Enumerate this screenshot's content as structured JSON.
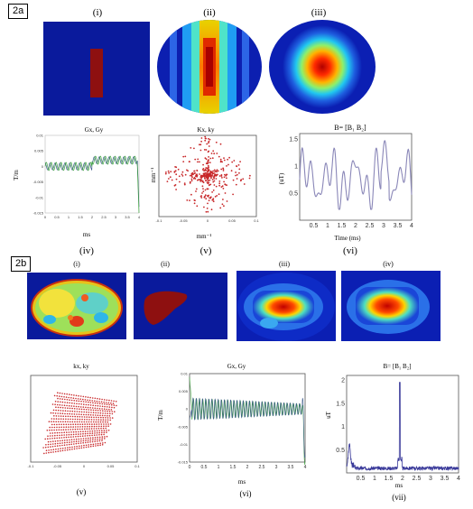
{
  "panel_a": {
    "label": "2a",
    "images": [
      "(i)",
      "(ii)",
      "(iii)"
    ],
    "plots": [
      {
        "roman": "(iv)",
        "title": "Gx, Gy",
        "xlabel": "ms",
        "ylabel": "T/m",
        "xticks": [
          "0",
          "0.5",
          "1",
          "1.5",
          "2",
          "2.5",
          "3",
          "3.5",
          "4"
        ],
        "yticks": [
          "0.01",
          "0.005",
          "0",
          "-0.005",
          "-0.01",
          "-0.015"
        ]
      },
      {
        "roman": "(v)",
        "title": "Kx, ky",
        "xlabel": "mm⁻¹",
        "ylabel": "mm⁻¹",
        "xticks": [
          "-0.1",
          "-0.05",
          "0",
          "0.05",
          "0.1"
        ]
      },
      {
        "roman": "(vi)",
        "title": "B= [B₁ B₂]",
        "xlabel": "Time (ms)",
        "ylabel": "(uT)",
        "xticks": [
          "0.5",
          "1",
          "1.5",
          "2",
          "2.5",
          "3",
          "3.5",
          "4"
        ],
        "yticks": [
          "1.5",
          "1",
          "0.5"
        ]
      }
    ]
  },
  "panel_b": {
    "label": "2b",
    "images": [
      "(i)",
      "(ii)",
      "(iii)",
      "(iv)"
    ],
    "plots": [
      {
        "roman": "(v)",
        "title": "kx, ky",
        "xticks": [
          "-0.1",
          "-0.05",
          "0",
          "0.05",
          "0.1"
        ]
      },
      {
        "roman": "(vi)",
        "title": "Gx, Gy",
        "xlabel": "ms",
        "ylabel": "T/m",
        "xticks": [
          "0",
          "0.5",
          "1",
          "1.5",
          "2",
          "2.5",
          "3",
          "3.5",
          "4"
        ],
        "yticks": [
          "0.01",
          "0.005",
          "0",
          "-0.005",
          "-0.01",
          "-0.015"
        ]
      },
      {
        "roman": "(vii)",
        "title": "B= [B₁ B₂]",
        "xlabel": "ms",
        "ylabel": "uT",
        "xticks": [
          "0.5",
          "1",
          "1.5",
          "2",
          "2.5",
          "3",
          "3.5",
          "4"
        ],
        "yticks": [
          "2",
          "1.5",
          "1",
          "0.5"
        ]
      }
    ]
  },
  "colors": {
    "map_bg": "#0a1a9c",
    "trace_green": "#3fa53f",
    "trace_blue": "#3d5a8a",
    "kspace_red": "#c8282a",
    "b_trace": "#8a87b8"
  },
  "chart_data": [
    {
      "type": "line",
      "title": "Gx, Gy",
      "xlabel": "ms",
      "ylabel": "T/m",
      "xlim": [
        0,
        4
      ],
      "ylim": [
        -0.015,
        0.01
      ],
      "series": [
        {
          "values": [
            [
              0,
              0
            ],
            [
              0.05,
              0
            ],
            [
              1.95,
              0
            ],
            [
              2,
              0.002
            ],
            [
              3.9,
              0.002
            ],
            [
              4,
              -0.015
            ]
          ]
        },
        {
          "values": [
            [
              0,
              0
            ],
            [
              0.05,
              0
            ],
            [
              1.95,
              0
            ],
            [
              3.9,
              0
            ],
            [
              4,
              -0.012
            ]
          ]
        }
      ]
    },
    {
      "type": "scatter",
      "title": "Kx, ky",
      "xlim": [
        -0.1,
        0.1
      ]
    },
    {
      "type": "line",
      "title": "B= [B₁ B₂]",
      "xlabel": "Time (ms)",
      "ylabel": "(uT)",
      "xlim": [
        0,
        4
      ],
      "ylim": [
        0,
        1.6
      ]
    },
    {
      "type": "scatter",
      "title": "kx, ky",
      "xlim": [
        -0.1,
        0.1
      ]
    },
    {
      "type": "line",
      "title": "Gx, Gy",
      "xlabel": "ms",
      "ylabel": "T/m",
      "xlim": [
        0,
        4
      ],
      "ylim": [
        -0.015,
        0.01
      ]
    },
    {
      "type": "line",
      "title": "B= [B₁ B₂]",
      "xlabel": "ms",
      "ylabel": "uT",
      "xlim": [
        0,
        4
      ],
      "ylim": [
        0,
        2.1
      ],
      "series": [
        {
          "values": [
            [
              0,
              0.15
            ],
            [
              0.1,
              0.55
            ],
            [
              0.3,
              0.1
            ],
            [
              1.85,
              0.15
            ],
            [
              1.9,
              1.95
            ],
            [
              1.95,
              0.1
            ],
            [
              4,
              0.05
            ]
          ]
        }
      ]
    }
  ]
}
